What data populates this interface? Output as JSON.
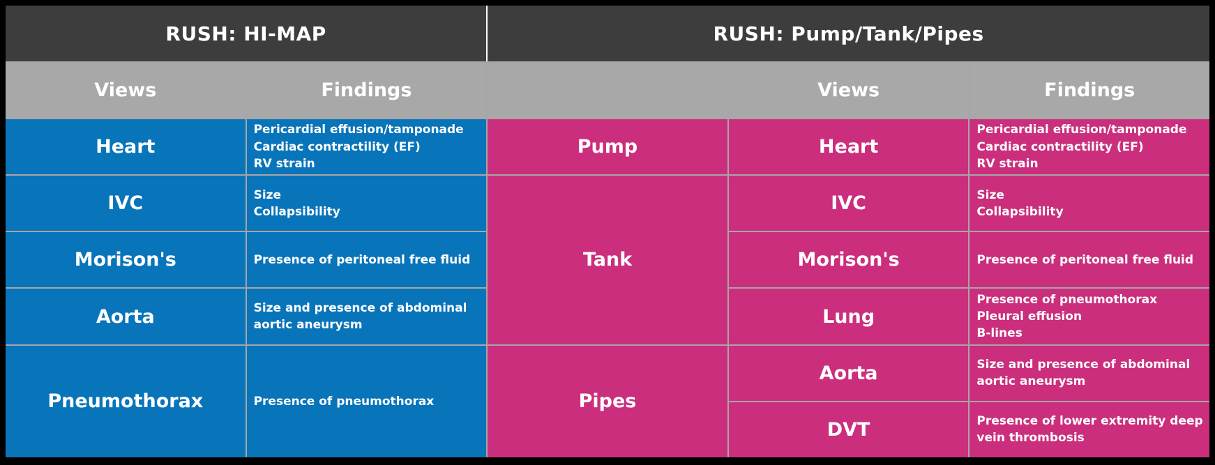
{
  "colors": {
    "frame_background": "#000000",
    "header_background": "#3d3d3d",
    "subheader_background": "#a8a8a8",
    "himap_table_color": "#0874ba",
    "pump_tank_pipes_table_color": "#cb2e7c",
    "grid_line_color": "#a6a6a6",
    "header_divider_color": "#ffffff",
    "text_color": "#ffffff"
  },
  "left_table": {
    "title": "RUSH: HI-MAP",
    "views_header": "Views",
    "findings_header": "Findings",
    "rows": [
      {
        "view": "Heart",
        "findings": [
          "Pericardial effusion/tamponade",
          "Cardiac contractility (EF)",
          "RV strain"
        ]
      },
      {
        "view": "IVC",
        "findings": [
          "Size",
          "Collapsibility"
        ]
      },
      {
        "view": "Morison's",
        "findings": [
          "Presence of peritoneal free fluid"
        ]
      },
      {
        "view": "Aorta",
        "findings": [
          "Size and presence of abdominal aortic aneurysm"
        ]
      },
      {
        "view": "Pneumothorax",
        "findings": [
          "Presence of pneumothorax"
        ]
      }
    ]
  },
  "right_table": {
    "title": "RUSH: Pump/Tank/Pipes",
    "views_header": "Views",
    "findings_header": "Findings",
    "categories": [
      {
        "name": "Pump",
        "rows": [
          {
            "view": "Heart",
            "findings": [
              "Pericardial effusion/tamponade",
              "Cardiac contractility (EF)",
              "RV strain"
            ]
          }
        ]
      },
      {
        "name": "Tank",
        "rows": [
          {
            "view": "IVC",
            "findings": [
              "Size",
              "Collapsibility"
            ]
          },
          {
            "view": "Morison's",
            "findings": [
              "Presence of peritoneal free fluid"
            ]
          },
          {
            "view": "Lung",
            "findings": [
              "Presence of pneumothorax",
              "Pleural effusion",
              "B-lines"
            ]
          }
        ]
      },
      {
        "name": "Pipes",
        "rows": [
          {
            "view": "Aorta",
            "findings": [
              "Size and presence of abdominal aortic aneurysm"
            ]
          },
          {
            "view": "DVT",
            "findings": [
              "Presence of lower extremity deep vein thrombosis"
            ]
          }
        ]
      }
    ]
  }
}
